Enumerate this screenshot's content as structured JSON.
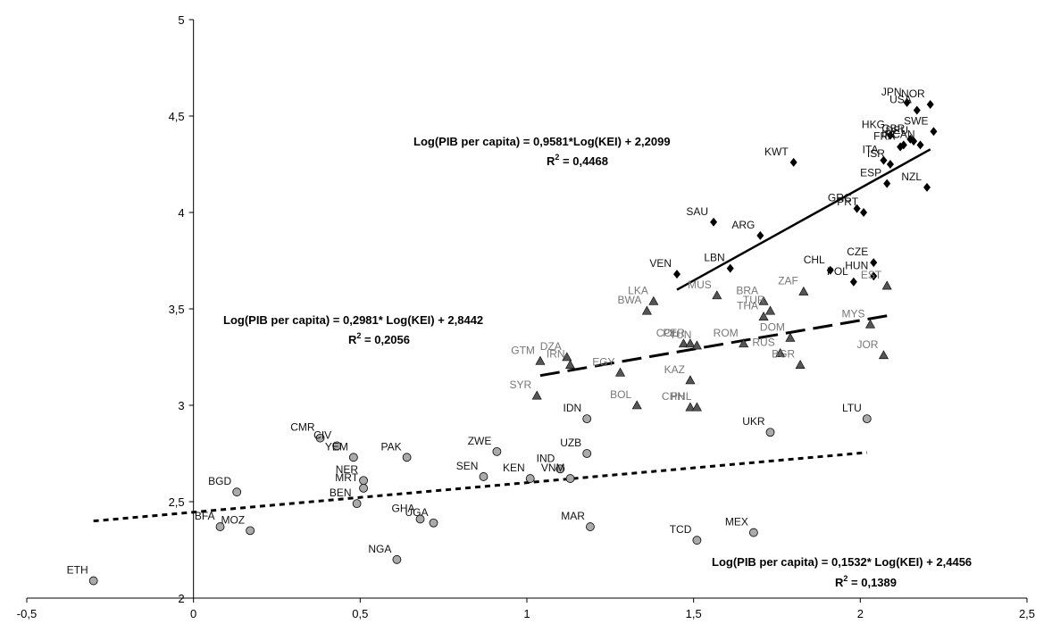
{
  "chart_data": {
    "type": "scatter",
    "x_ticks": [
      "-0,5",
      "0",
      "0,5",
      "1",
      "1,5",
      "2",
      "2,5"
    ],
    "y_ticks": [
      "2",
      "2,5",
      "3",
      "3,5",
      "4",
      "4,5",
      "5"
    ],
    "xlim": [
      -0.5,
      2.5
    ],
    "ylim": [
      2,
      5
    ],
    "grid": false,
    "colors": {
      "high": "#000000",
      "mid": "#555555",
      "low": "#aaaaaa",
      "label_low": "#111111",
      "label_mid": "#777777",
      "label_high": "#111111"
    },
    "series": [
      {
        "marker": "diamond",
        "points": [
          {
            "label": "JPN",
            "x": 2.14,
            "y": 4.57
          },
          {
            "label": "USA",
            "x": 2.17,
            "y": 4.53
          },
          {
            "label": "NOR",
            "x": 2.21,
            "y": 4.56
          },
          {
            "label": "SWE",
            "x": 2.22,
            "y": 4.42
          },
          {
            "label": "HKG",
            "x": 2.09,
            "y": 4.4
          },
          {
            "label": "IRL",
            "x": 2.13,
            "y": 4.35
          },
          {
            "label": "GBR",
            "x": 2.15,
            "y": 4.38
          },
          {
            "label": "FRA",
            "x": 2.12,
            "y": 4.34
          },
          {
            "label": "DEU",
            "x": 2.16,
            "y": 4.37
          },
          {
            "label": "CAN",
            "x": 2.18,
            "y": 4.35
          },
          {
            "label": "ITA",
            "x": 2.07,
            "y": 4.27
          },
          {
            "label": "ISR",
            "x": 2.09,
            "y": 4.25
          },
          {
            "label": "ESP",
            "x": 2.08,
            "y": 4.15
          },
          {
            "label": "NZL",
            "x": 2.2,
            "y": 4.13
          },
          {
            "label": "KWT",
            "x": 1.8,
            "y": 4.26
          },
          {
            "label": "GRC",
            "x": 1.99,
            "y": 4.02
          },
          {
            "label": "PRT",
            "x": 2.01,
            "y": 4.0
          },
          {
            "label": "SAU",
            "x": 1.56,
            "y": 3.95
          },
          {
            "label": "ARG",
            "x": 1.7,
            "y": 3.88
          },
          {
            "label": "VEN",
            "x": 1.45,
            "y": 3.68
          },
          {
            "label": "LBN",
            "x": 1.61,
            "y": 3.71
          },
          {
            "label": "CHL",
            "x": 1.91,
            "y": 3.7
          },
          {
            "label": "CZE",
            "x": 2.04,
            "y": 3.74
          },
          {
            "label": "HUN",
            "x": 2.04,
            "y": 3.67
          },
          {
            "label": "POL",
            "x": 1.98,
            "y": 3.64
          }
        ]
      },
      {
        "marker": "triangle",
        "points": [
          {
            "label": "EST",
            "x": 2.08,
            "y": 3.62
          },
          {
            "label": "LKA",
            "x": 1.38,
            "y": 3.54
          },
          {
            "label": "BWA",
            "x": 1.36,
            "y": 3.49
          },
          {
            "label": "MUS",
            "x": 1.57,
            "y": 3.57
          },
          {
            "label": "BRA",
            "x": 1.71,
            "y": 3.54
          },
          {
            "label": "ZAF",
            "x": 1.83,
            "y": 3.59
          },
          {
            "label": "COL",
            "x": 1.47,
            "y": 3.32
          },
          {
            "label": "PER",
            "x": 1.49,
            "y": 3.32
          },
          {
            "label": "TUN",
            "x": 1.51,
            "y": 3.31
          },
          {
            "label": "THA",
            "x": 1.71,
            "y": 3.46
          },
          {
            "label": "TUR",
            "x": 1.73,
            "y": 3.49
          },
          {
            "label": "DOM",
            "x": 1.79,
            "y": 3.35
          },
          {
            "label": "MYS",
            "x": 2.03,
            "y": 3.42
          },
          {
            "label": "ROM",
            "x": 1.65,
            "y": 3.32
          },
          {
            "label": "RUS",
            "x": 1.76,
            "y": 3.27
          },
          {
            "label": "BGR",
            "x": 1.82,
            "y": 3.21
          },
          {
            "label": "JOR",
            "x": 2.07,
            "y": 3.26
          },
          {
            "label": "GTM",
            "x": 1.04,
            "y": 3.23
          },
          {
            "label": "DZA",
            "x": 1.12,
            "y": 3.25
          },
          {
            "label": "IRN",
            "x": 1.13,
            "y": 3.21
          },
          {
            "label": "EGY",
            "x": 1.28,
            "y": 3.17
          },
          {
            "label": "KAZ",
            "x": 1.49,
            "y": 3.13
          },
          {
            "label": "SYR",
            "x": 1.03,
            "y": 3.05
          },
          {
            "label": "BOL",
            "x": 1.33,
            "y": 3.0
          },
          {
            "label": "CHN",
            "x": 1.49,
            "y": 2.99
          },
          {
            "label": "PHL",
            "x": 1.51,
            "y": 2.99
          }
        ]
      },
      {
        "marker": "circle",
        "points": [
          {
            "label": "IDN",
            "x": 1.18,
            "y": 2.93
          },
          {
            "label": "LTU",
            "x": 2.02,
            "y": 2.93
          },
          {
            "label": "UKR",
            "x": 1.73,
            "y": 2.86
          },
          {
            "label": "CMR",
            "x": 0.38,
            "y": 2.83
          },
          {
            "label": "CIV",
            "x": 0.43,
            "y": 2.79
          },
          {
            "label": "YEM",
            "x": 0.48,
            "y": 2.73
          },
          {
            "label": "PAK",
            "x": 0.64,
            "y": 2.73
          },
          {
            "label": "ZWE",
            "x": 0.91,
            "y": 2.76
          },
          {
            "label": "UZB",
            "x": 1.18,
            "y": 2.75
          },
          {
            "label": "NER",
            "x": 0.51,
            "y": 2.61
          },
          {
            "label": "MRT",
            "x": 0.51,
            "y": 2.57
          },
          {
            "label": "SEN",
            "x": 0.87,
            "y": 2.63
          },
          {
            "label": "KEN",
            "x": 1.01,
            "y": 2.62
          },
          {
            "label": "IND",
            "x": 1.1,
            "y": 2.67
          },
          {
            "label": "VNM",
            "x": 1.13,
            "y": 2.62
          },
          {
            "label": "BGD",
            "x": 0.13,
            "y": 2.55
          },
          {
            "label": "BEN",
            "x": 0.49,
            "y": 2.49
          },
          {
            "label": "GHA",
            "x": 0.68,
            "y": 2.41
          },
          {
            "label": "UGA",
            "x": 0.72,
            "y": 2.39
          },
          {
            "label": "BFA",
            "x": 0.08,
            "y": 2.37
          },
          {
            "label": "MOZ",
            "x": 0.17,
            "y": 2.35
          },
          {
            "label": "MAR",
            "x": 1.19,
            "y": 2.37
          },
          {
            "label": "TCD",
            "x": 1.51,
            "y": 2.3
          },
          {
            "label": "MEX",
            "x": 1.68,
            "y": 2.34
          },
          {
            "label": "NGA",
            "x": 0.61,
            "y": 2.2
          },
          {
            "label": "ETH",
            "x": -0.3,
            "y": 2.09
          }
        ]
      }
    ],
    "trendlines": [
      {
        "series": 0,
        "style": "solid",
        "x0": 1.45,
        "x1": 2.21,
        "slope": 0.9581,
        "intercept": 2.2099,
        "equation": "Log(PIB per capita) = 0,9581*Log(KEI) + 2,2099",
        "r2_label": "R",
        "r2_value": " = 0,4468"
      },
      {
        "series": 1,
        "style": "dashed",
        "x0": 1.04,
        "x1": 2.08,
        "slope": 0.2981,
        "intercept": 2.8442,
        "equation": "Log(PIB per capita) = 0,2981* Log(KEI) + 2,8442",
        "r2_label": "R",
        "r2_value": " = 0,2056"
      },
      {
        "series": 2,
        "style": "dotted",
        "x0": -0.3,
        "x1": 2.02,
        "slope": 0.1532,
        "intercept": 2.4456,
        "equation": "Log(PIB per capita) = 0,1532* Log(KEI) + 2,4456",
        "r2_label": "R",
        "r2_value": " = 0,1389"
      }
    ]
  }
}
